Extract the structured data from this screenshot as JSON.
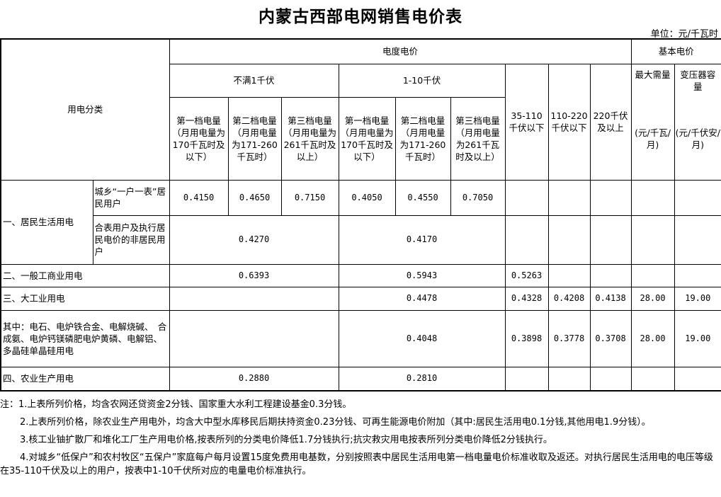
{
  "title": "内蒙古西部电网销售电价表",
  "unit": "单位：元/千瓦时",
  "header": {
    "category": "用电分类",
    "energy_price": "电度电价",
    "basic_price": "基本电价",
    "below_1kv": "不满1千伏",
    "kv_1_10": "1-10千伏",
    "kv_35_110": "35-110千伏以下",
    "kv_110_220": "110-220千伏以下",
    "kv_220": "220千伏及以上",
    "max_demand": "最大需量",
    "max_demand_unit": "(元/千瓦/月)",
    "transformer": "变压器容量",
    "transformer_unit": "(元/千伏安/月)",
    "tiers": [
      "第一档电量（月用电量为170千瓦时及以下）",
      "第二档电量（月用电量为171-260千瓦时）",
      "第三档电量（月用电量为261千瓦时及以上）",
      "第一档电量（月用电量为170千瓦时及以下）",
      "第二档电量（月用电量为171-260千瓦时）",
      "第三档电量（月用电量为261千瓦时及以上）"
    ]
  },
  "rows": {
    "residential": {
      "label": "一、居民生活用电",
      "sub1": {
        "label": "城乡“一户一表”居民用户",
        "values": [
          "0.4150",
          "0.4650",
          "0.7150",
          "0.4050",
          "0.4550",
          "0.7050"
        ]
      },
      "sub2": {
        "label": "合表用户及执行居民电价的非居民用户",
        "below_1kv": "0.4270",
        "kv_1_10": "0.4170"
      }
    },
    "commercial": {
      "label": "二、一般工商业用电",
      "below_1kv": "0.6393",
      "kv_1_10": "0.5943",
      "kv_35_110": "0.5263"
    },
    "large_industry": {
      "label": "三、大工业用电",
      "kv_1_10": "0.4478",
      "kv_35_110": "0.4328",
      "kv_110_220": "0.4208",
      "kv_220": "0.4138",
      "max_demand": "28.00",
      "transformer": "19.00"
    },
    "special": {
      "label": "其中：电石、电炉铁合金、电解烧碱、　合成氨、电炉钙镁磷肥电炉黄磷、电解铝、多晶硅单晶硅用电",
      "kv_1_10": "0.4048",
      "kv_35_110": "0.3898",
      "kv_110_220": "0.3778",
      "kv_220": "0.3708",
      "max_demand": "28.00",
      "transformer": "19.00"
    },
    "agriculture": {
      "label": "四、农业生产用电",
      "below_1kv": "0.2880",
      "kv_1_10": "0.2810"
    }
  },
  "notes": [
    "注：1.上表所列价格，均含农网还贷资金2分钱、国家重大水利工程建设基金0.3分钱。",
    "2.上表所列价格，除农业生产用电外，均含大中型水库移民后期扶持资金0.23分钱、可再生能源电价附加（其中:居民生活用电0.1分钱,其他用电1.9分钱）。",
    "3.核工业铀扩散厂和堆化工厂生产用电价格,按表所列的分类电价降低1.7分钱执行;抗灾救灾用电按表所列分类电价降低2分钱执行。",
    "4.对城乡“低保户”和农村牧区“五保户”家庭每户每月设置15度免费用电基数，分别按照表中居民生活用电第一档电量电价标准收取及返还。对执行居民生活用电的电压等级在35-110千伏及以上的用户，按表中1-10千伏所对应的电量电价标准执行。"
  ]
}
